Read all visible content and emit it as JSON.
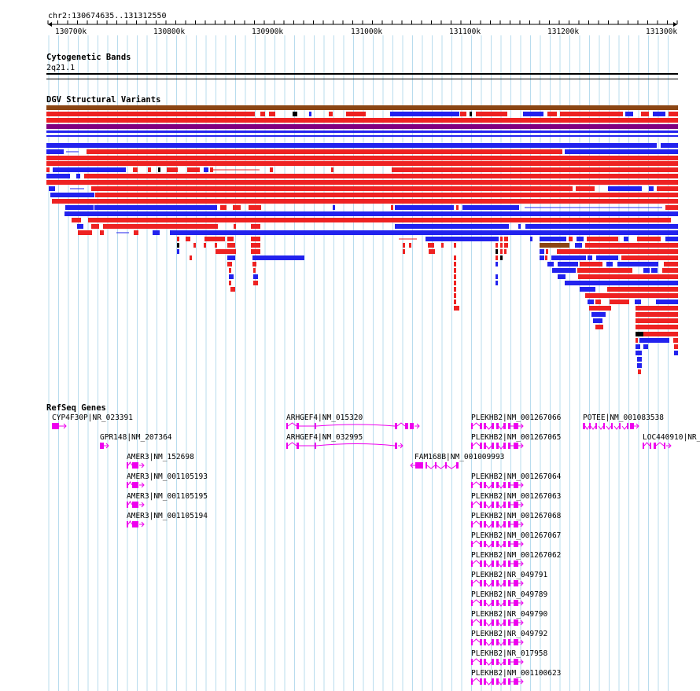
{
  "ruler": {
    "coordinate_label": "chr2:130674635..131312550",
    "ticks": [
      "130700k",
      "130800k",
      "130900k",
      "131000k",
      "131100k",
      "131200k",
      "131300k"
    ]
  },
  "cytoband": {
    "title": "Cytogenetic Bands",
    "band": "2q21.1"
  },
  "dgv": {
    "title": "DGV Structural Variants",
    "colors": {
      "gain": "#ee2222",
      "loss": "#2222ee",
      "gain_loss": "#8b4513",
      "inversion": "#800080",
      "complex": "#000000"
    }
  },
  "refseq": {
    "title": "RefSeq Genes",
    "color": "#ee00ee",
    "genes": [
      {
        "label": "CYP4F30P|NR_023391"
      },
      {
        "label": "GPR148|NM_207364"
      },
      {
        "label": "AMER3|NM_152698"
      },
      {
        "label": "AMER3|NM_001105193"
      },
      {
        "label": "AMER3|NM_001105195"
      },
      {
        "label": "AMER3|NM_001105194"
      },
      {
        "label": "ARHGEF4|NM_015320"
      },
      {
        "label": "ARHGEF4|NM_032995"
      },
      {
        "label": "FAM168B|NM_001009993"
      },
      {
        "label": "PLEKHB2|NM_001267066"
      },
      {
        "label": "PLEKHB2|NM_001267065"
      },
      {
        "label": "PLEKHB2|NM_001267064"
      },
      {
        "label": "PLEKHB2|NM_001267063"
      },
      {
        "label": "PLEKHB2|NM_001267068"
      },
      {
        "label": "PLEKHB2|NM_001267067"
      },
      {
        "label": "PLEKHB2|NM_001267062"
      },
      {
        "label": "PLEKHB2|NR_049791"
      },
      {
        "label": "PLEKHB2|NR_049789"
      },
      {
        "label": "PLEKHB2|NR_049790"
      },
      {
        "label": "PLEKHB2|NR_049792"
      },
      {
        "label": "PLEKHB2|NR_017958"
      },
      {
        "label": "PLEKHB2|NM_001100623"
      },
      {
        "label": "POTEE|NM_001083538"
      },
      {
        "label": "LOC440910|NR_..."
      }
    ]
  }
}
